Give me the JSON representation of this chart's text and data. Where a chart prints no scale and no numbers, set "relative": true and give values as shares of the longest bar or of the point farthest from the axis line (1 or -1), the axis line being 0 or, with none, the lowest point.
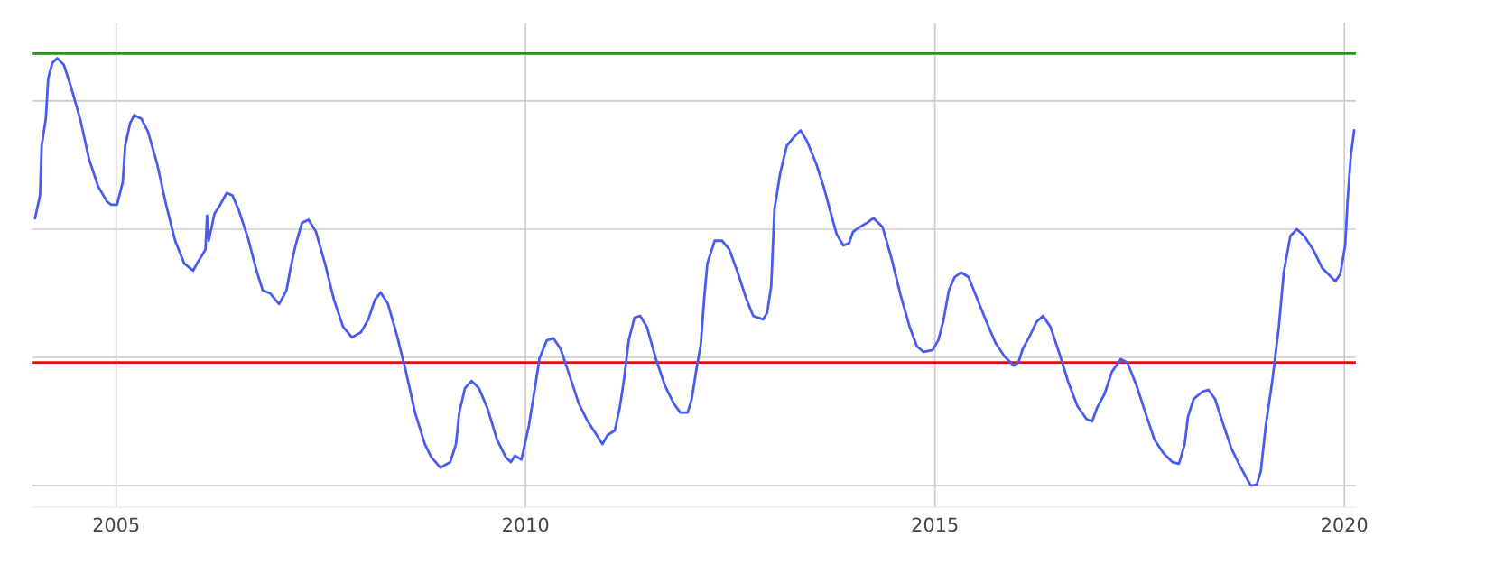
{
  "chart_data": {
    "type": "line",
    "relative": true,
    "grid": true,
    "marker": "none",
    "line_style": "solid",
    "xlim": [
      2003.98,
      2020.14
    ],
    "xticks": [
      2005,
      2010,
      2015,
      2020
    ],
    "tick_labels": "x",
    "ref_lines": [
      {
        "axis": "y",
        "value": 1.011,
        "color": "#1a9a1a",
        "line_style": "solid"
      },
      {
        "axis": "y",
        "value": 0.288,
        "color": "#e01010",
        "line_style": "solid"
      }
    ],
    "series": [
      {
        "color": "#4a5cf0",
        "x": [
          2004.01,
          2004.07,
          2004.09,
          2004.14,
          2004.17,
          2004.22,
          2004.28,
          2004.36,
          2004.45,
          2004.56,
          2004.67,
          2004.78,
          2004.89,
          2004.94,
          2005.01,
          2005.08,
          2005.11,
          2005.17,
          2005.22,
          2005.31,
          2005.39,
          2005.5,
          2005.61,
          2005.72,
          2005.83,
          2005.94,
          2006.0,
          2006.09,
          2006.11,
          2006.13,
          2006.2,
          2006.27,
          2006.35,
          2006.42,
          2006.5,
          2006.61,
          2006.72,
          2006.79,
          2006.88,
          2006.99,
          2007.08,
          2007.13,
          2007.19,
          2007.27,
          2007.35,
          2007.44,
          2007.55,
          2007.66,
          2007.77,
          2007.88,
          2007.99,
          2008.08,
          2008.16,
          2008.23,
          2008.32,
          2008.43,
          2008.54,
          2008.65,
          2008.77,
          2008.85,
          2008.96,
          2009.08,
          2009.15,
          2009.19,
          2009.26,
          2009.34,
          2009.43,
          2009.54,
          2009.65,
          2009.76,
          2009.82,
          2009.87,
          2009.95,
          2010.04,
          2010.12,
          2010.17,
          2010.26,
          2010.34,
          2010.43,
          2010.54,
          2010.65,
          2010.76,
          2010.87,
          2010.94,
          2011.0,
          2011.09,
          2011.15,
          2011.2,
          2011.26,
          2011.33,
          2011.4,
          2011.48,
          2011.59,
          2011.7,
          2011.81,
          2011.89,
          2011.98,
          2012.03,
          2012.09,
          2012.14,
          2012.18,
          2012.22,
          2012.31,
          2012.4,
          2012.49,
          2012.59,
          2012.7,
          2012.78,
          2012.9,
          2012.95,
          2013.0,
          2013.04,
          2013.11,
          2013.19,
          2013.28,
          2013.36,
          2013.44,
          2013.55,
          2013.64,
          2013.73,
          2013.8,
          2013.88,
          2013.95,
          2014.0,
          2014.08,
          2014.17,
          2014.25,
          2014.36,
          2014.47,
          2014.58,
          2014.69,
          2014.78,
          2014.86,
          2014.97,
          2015.04,
          2015.1,
          2015.17,
          2015.24,
          2015.32,
          2015.41,
          2015.52,
          2015.63,
          2015.74,
          2015.85,
          2015.96,
          2016.02,
          2016.07,
          2016.16,
          2016.24,
          2016.32,
          2016.41,
          2016.52,
          2016.63,
          2016.74,
          2016.85,
          2016.92,
          2016.98,
          2017.07,
          2017.16,
          2017.27,
          2017.35,
          2017.46,
          2017.57,
          2017.68,
          2017.79,
          2017.9,
          2017.98,
          2018.05,
          2018.09,
          2018.16,
          2018.27,
          2018.34,
          2018.42,
          2018.51,
          2018.62,
          2018.73,
          2018.82,
          2018.86,
          2018.93,
          2018.98,
          2019.04,
          2019.12,
          2019.2,
          2019.26,
          2019.34,
          2019.42,
          2019.51,
          2019.62,
          2019.73,
          2019.84,
          2019.89,
          2019.95,
          2020.01,
          2020.04,
          2020.08,
          2020.12
        ],
        "values": [
          0.626,
          0.679,
          0.795,
          0.858,
          0.953,
          0.989,
          1.0,
          0.985,
          0.932,
          0.858,
          0.763,
          0.7,
          0.664,
          0.657,
          0.657,
          0.71,
          0.795,
          0.848,
          0.867,
          0.858,
          0.827,
          0.753,
          0.657,
          0.573,
          0.52,
          0.503,
          0.524,
          0.552,
          0.632,
          0.573,
          0.636,
          0.657,
          0.685,
          0.679,
          0.643,
          0.579,
          0.499,
          0.457,
          0.45,
          0.425,
          0.457,
          0.509,
          0.562,
          0.615,
          0.622,
          0.594,
          0.52,
          0.435,
          0.372,
          0.347,
          0.359,
          0.389,
          0.435,
          0.452,
          0.425,
          0.351,
          0.266,
          0.171,
          0.097,
          0.066,
          0.042,
          0.055,
          0.097,
          0.171,
          0.228,
          0.245,
          0.228,
          0.178,
          0.108,
          0.066,
          0.055,
          0.07,
          0.061,
          0.14,
          0.235,
          0.298,
          0.34,
          0.345,
          0.319,
          0.256,
          0.192,
          0.15,
          0.118,
          0.097,
          0.118,
          0.129,
          0.182,
          0.245,
          0.34,
          0.393,
          0.397,
          0.372,
          0.298,
          0.235,
          0.192,
          0.171,
          0.171,
          0.203,
          0.277,
          0.33,
          0.435,
          0.52,
          0.573,
          0.573,
          0.552,
          0.499,
          0.435,
          0.397,
          0.389,
          0.404,
          0.467,
          0.647,
          0.731,
          0.795,
          0.816,
          0.831,
          0.805,
          0.753,
          0.7,
          0.636,
          0.588,
          0.562,
          0.567,
          0.594,
          0.605,
          0.615,
          0.626,
          0.605,
          0.531,
          0.446,
          0.372,
          0.326,
          0.313,
          0.317,
          0.34,
          0.383,
          0.457,
          0.488,
          0.499,
          0.488,
          0.435,
          0.383,
          0.334,
          0.302,
          0.281,
          0.288,
          0.319,
          0.351,
          0.383,
          0.397,
          0.372,
          0.309,
          0.241,
          0.186,
          0.156,
          0.15,
          0.182,
          0.214,
          0.266,
          0.296,
          0.288,
          0.235,
          0.171,
          0.108,
          0.076,
          0.055,
          0.051,
          0.097,
          0.161,
          0.203,
          0.22,
          0.224,
          0.203,
          0.15,
          0.087,
          0.044,
          0.013,
          0,
          0.002,
          0.034,
          0.14,
          0.245,
          0.372,
          0.499,
          0.584,
          0.6,
          0.584,
          0.552,
          0.509,
          0.488,
          0.478,
          0.495,
          0.562,
          0.668,
          0.774,
          0.831
        ]
      }
    ]
  }
}
